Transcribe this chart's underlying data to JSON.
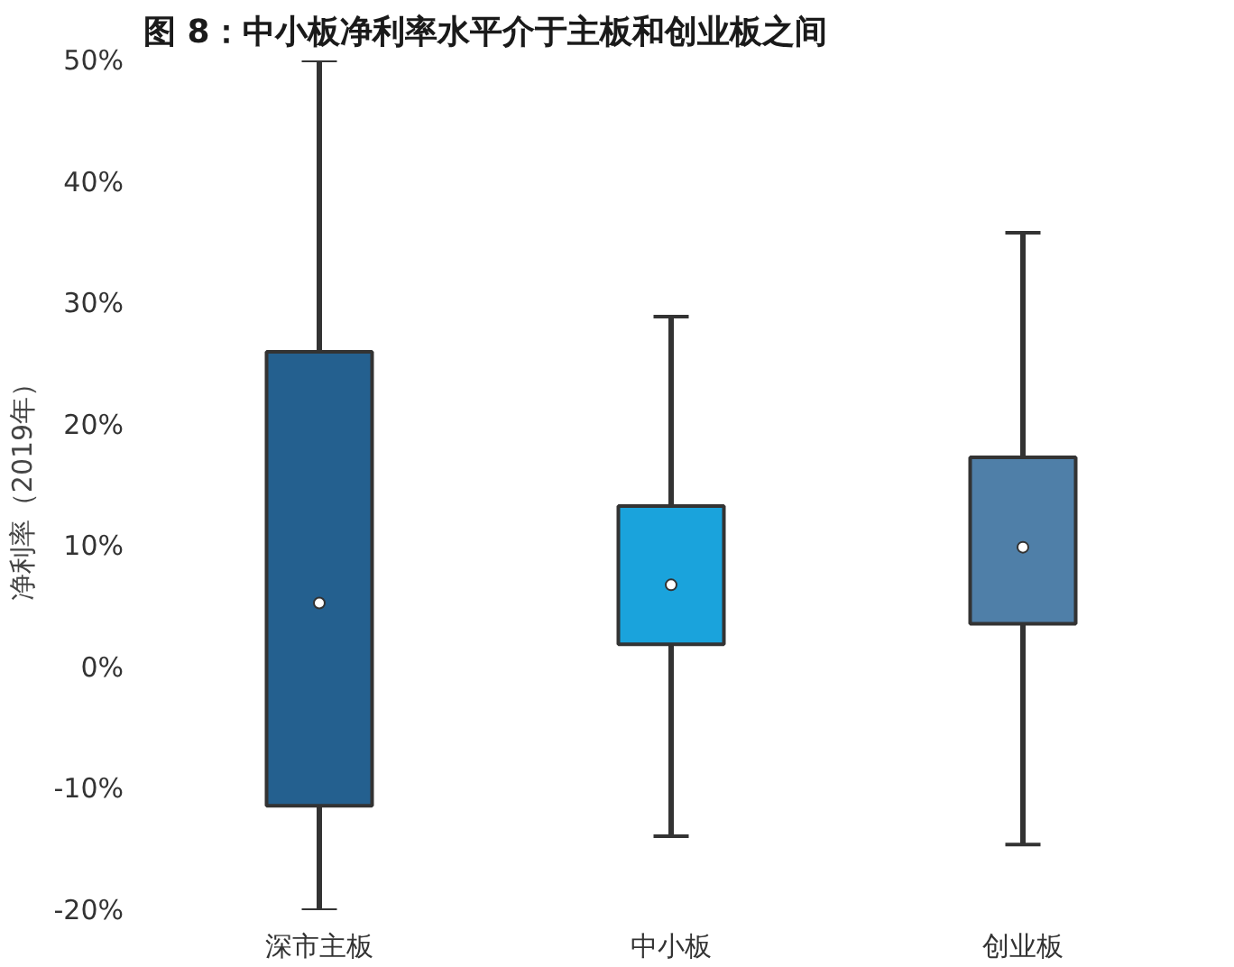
{
  "chart_data": {
    "type": "box",
    "title": "图 8：中小板净利率水平介于主板和创业板之间",
    "ylabel": "净利率（2019年）",
    "categories": [
      "深市主板",
      "中小板",
      "创业板"
    ],
    "colors": [
      "#24608f",
      "#1aa3dc",
      "#4f7fa8"
    ],
    "boxes": [
      {
        "low": -20,
        "q1": -11.4,
        "median": 5.3,
        "q3": 26,
        "high": 50
      },
      {
        "low": -13.9,
        "q1": 1.9,
        "median": 6.8,
        "q3": 13.3,
        "high": 28.9
      },
      {
        "low": -14.6,
        "q1": 3.6,
        "median": 9.9,
        "q3": 17.3,
        "high": 35.8
      }
    ],
    "ylim": [
      -20,
      50
    ],
    "yticks": [
      {
        "value": -20,
        "label": "-20%"
      },
      {
        "value": -10,
        "label": "-10%"
      },
      {
        "value": 0,
        "label": "0%"
      },
      {
        "value": 10,
        "label": "10%"
      },
      {
        "value": 20,
        "label": "20%"
      },
      {
        "value": 30,
        "label": "30%"
      },
      {
        "value": 40,
        "label": "40%"
      },
      {
        "value": 50,
        "label": "50%"
      }
    ],
    "grid": false
  }
}
